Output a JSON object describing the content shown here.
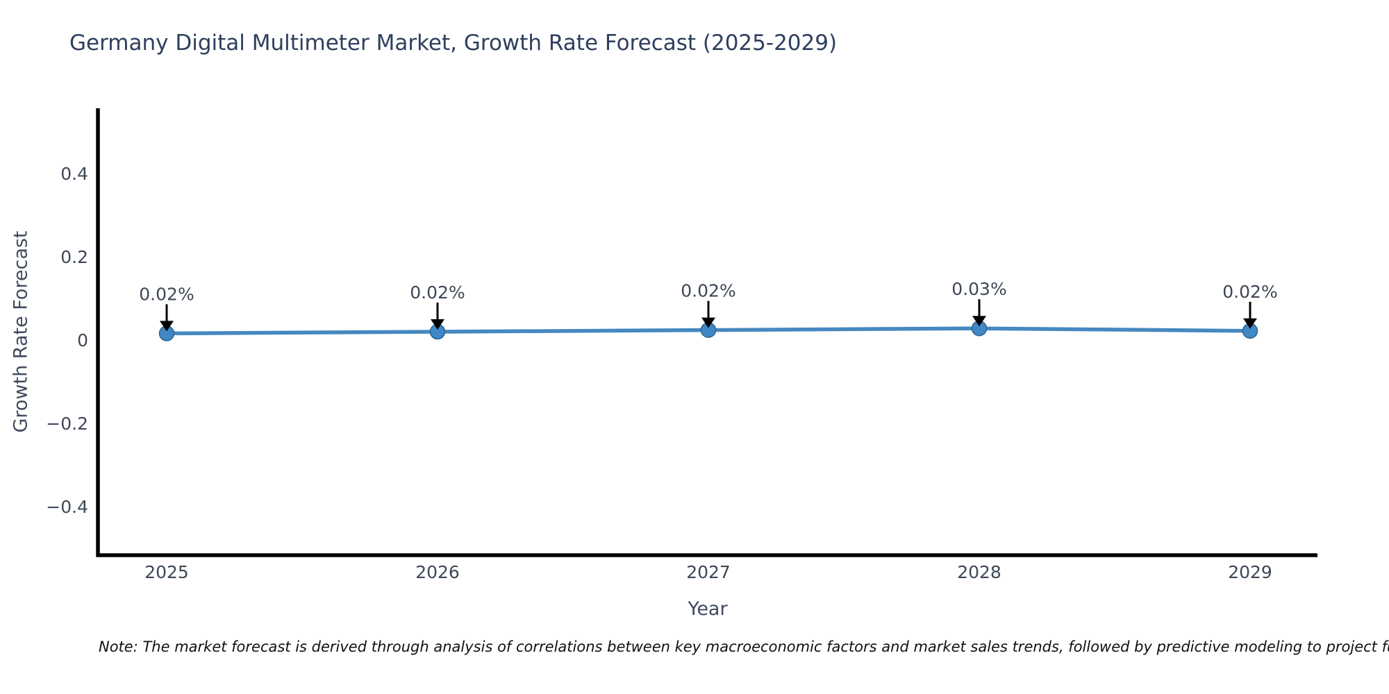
{
  "page": {
    "background": "#ffffff"
  },
  "note": {
    "text": "Note: The market forecast is derived through analysis of correlations between key macroeconomic factors and market sales trends, followed by predictive modeling to project future sa"
  },
  "chart_data": {
    "type": "line",
    "title": "Germany Digital Multimeter Market, Growth Rate Forecast (2025-2029)",
    "xlabel": "Year",
    "ylabel": "Growth Rate Forecast",
    "x": [
      2025,
      2026,
      2027,
      2028,
      2029
    ],
    "values": [
      0.016,
      0.02,
      0.024,
      0.028,
      0.022
    ],
    "point_labels": [
      "0.02%",
      "0.02%",
      "0.02%",
      "0.03%",
      "0.02%"
    ],
    "yticks": [
      0.4,
      0.2,
      0,
      -0.2,
      -0.4
    ],
    "ytick_labels": [
      "0.4",
      "0.2",
      "0",
      "−0.2",
      "−0.4"
    ],
    "ylim": [
      -0.52,
      0.56
    ],
    "grid": false,
    "legend": "none",
    "annotation_style": "downward-arrow-to-point",
    "colors": {
      "line": "#4688c0",
      "marker_fill": "#3f87c5",
      "marker_edge": "#29638f",
      "arrow": "#000000",
      "axis": "#000000",
      "title_text": "#2e3f5e",
      "tick_text": "#3d4756",
      "axis_label_text": "#3e4a5e"
    }
  }
}
